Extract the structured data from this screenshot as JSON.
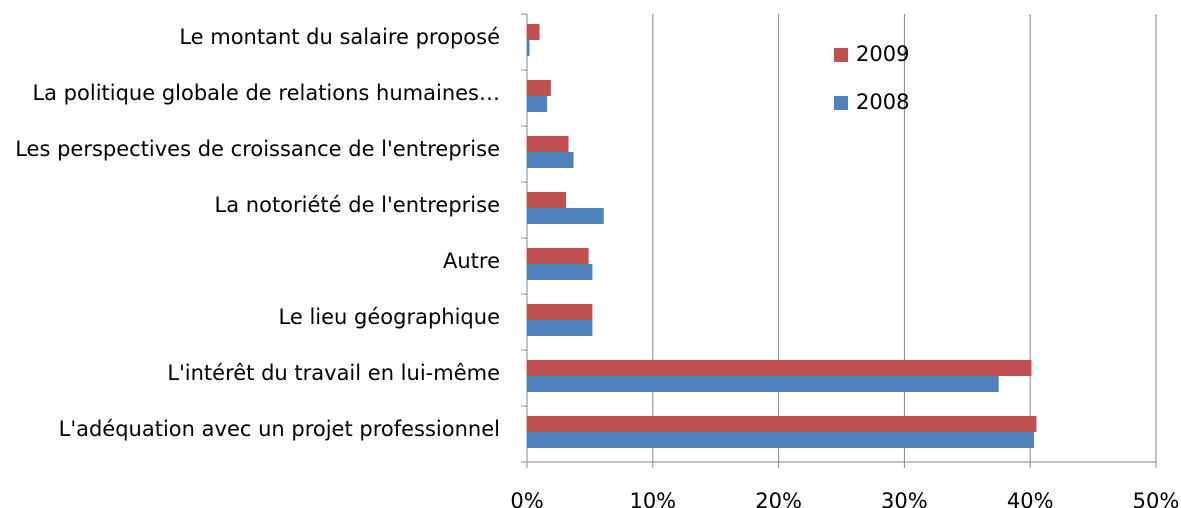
{
  "chart_data": {
    "type": "bar",
    "orientation": "horizontal",
    "categories": [
      "Le montant du salaire proposé",
      "La politique globale de relations humaines…",
      "Les perspectives de croissance de l'entreprise",
      "La notoriété de l'entreprise",
      "Autre",
      "Le lieu géographique",
      "L'intérêt du travail en lui-même",
      "L'adéquation avec un projet professionnel"
    ],
    "series": [
      {
        "name": "2009",
        "color": "#c0504d",
        "values": [
          1,
          1.9,
          3.3,
          3.1,
          4.9,
          5.2,
          40.1,
          40.5
        ]
      },
      {
        "name": "2008",
        "color": "#4f81bd",
        "values": [
          0.2,
          1.6,
          3.7,
          6.1,
          5.2,
          5.2,
          37.5,
          40.3
        ]
      }
    ],
    "xlim": [
      0,
      50
    ],
    "xticks": [
      {
        "value": 0,
        "label": "0%"
      },
      {
        "value": 10,
        "label": "10%"
      },
      {
        "value": 20,
        "label": "20%"
      },
      {
        "value": 30,
        "label": "30%"
      },
      {
        "value": 40,
        "label": "40%"
      },
      {
        "value": 50,
        "label": "50%"
      }
    ],
    "grid": true,
    "legend": "upper right"
  }
}
